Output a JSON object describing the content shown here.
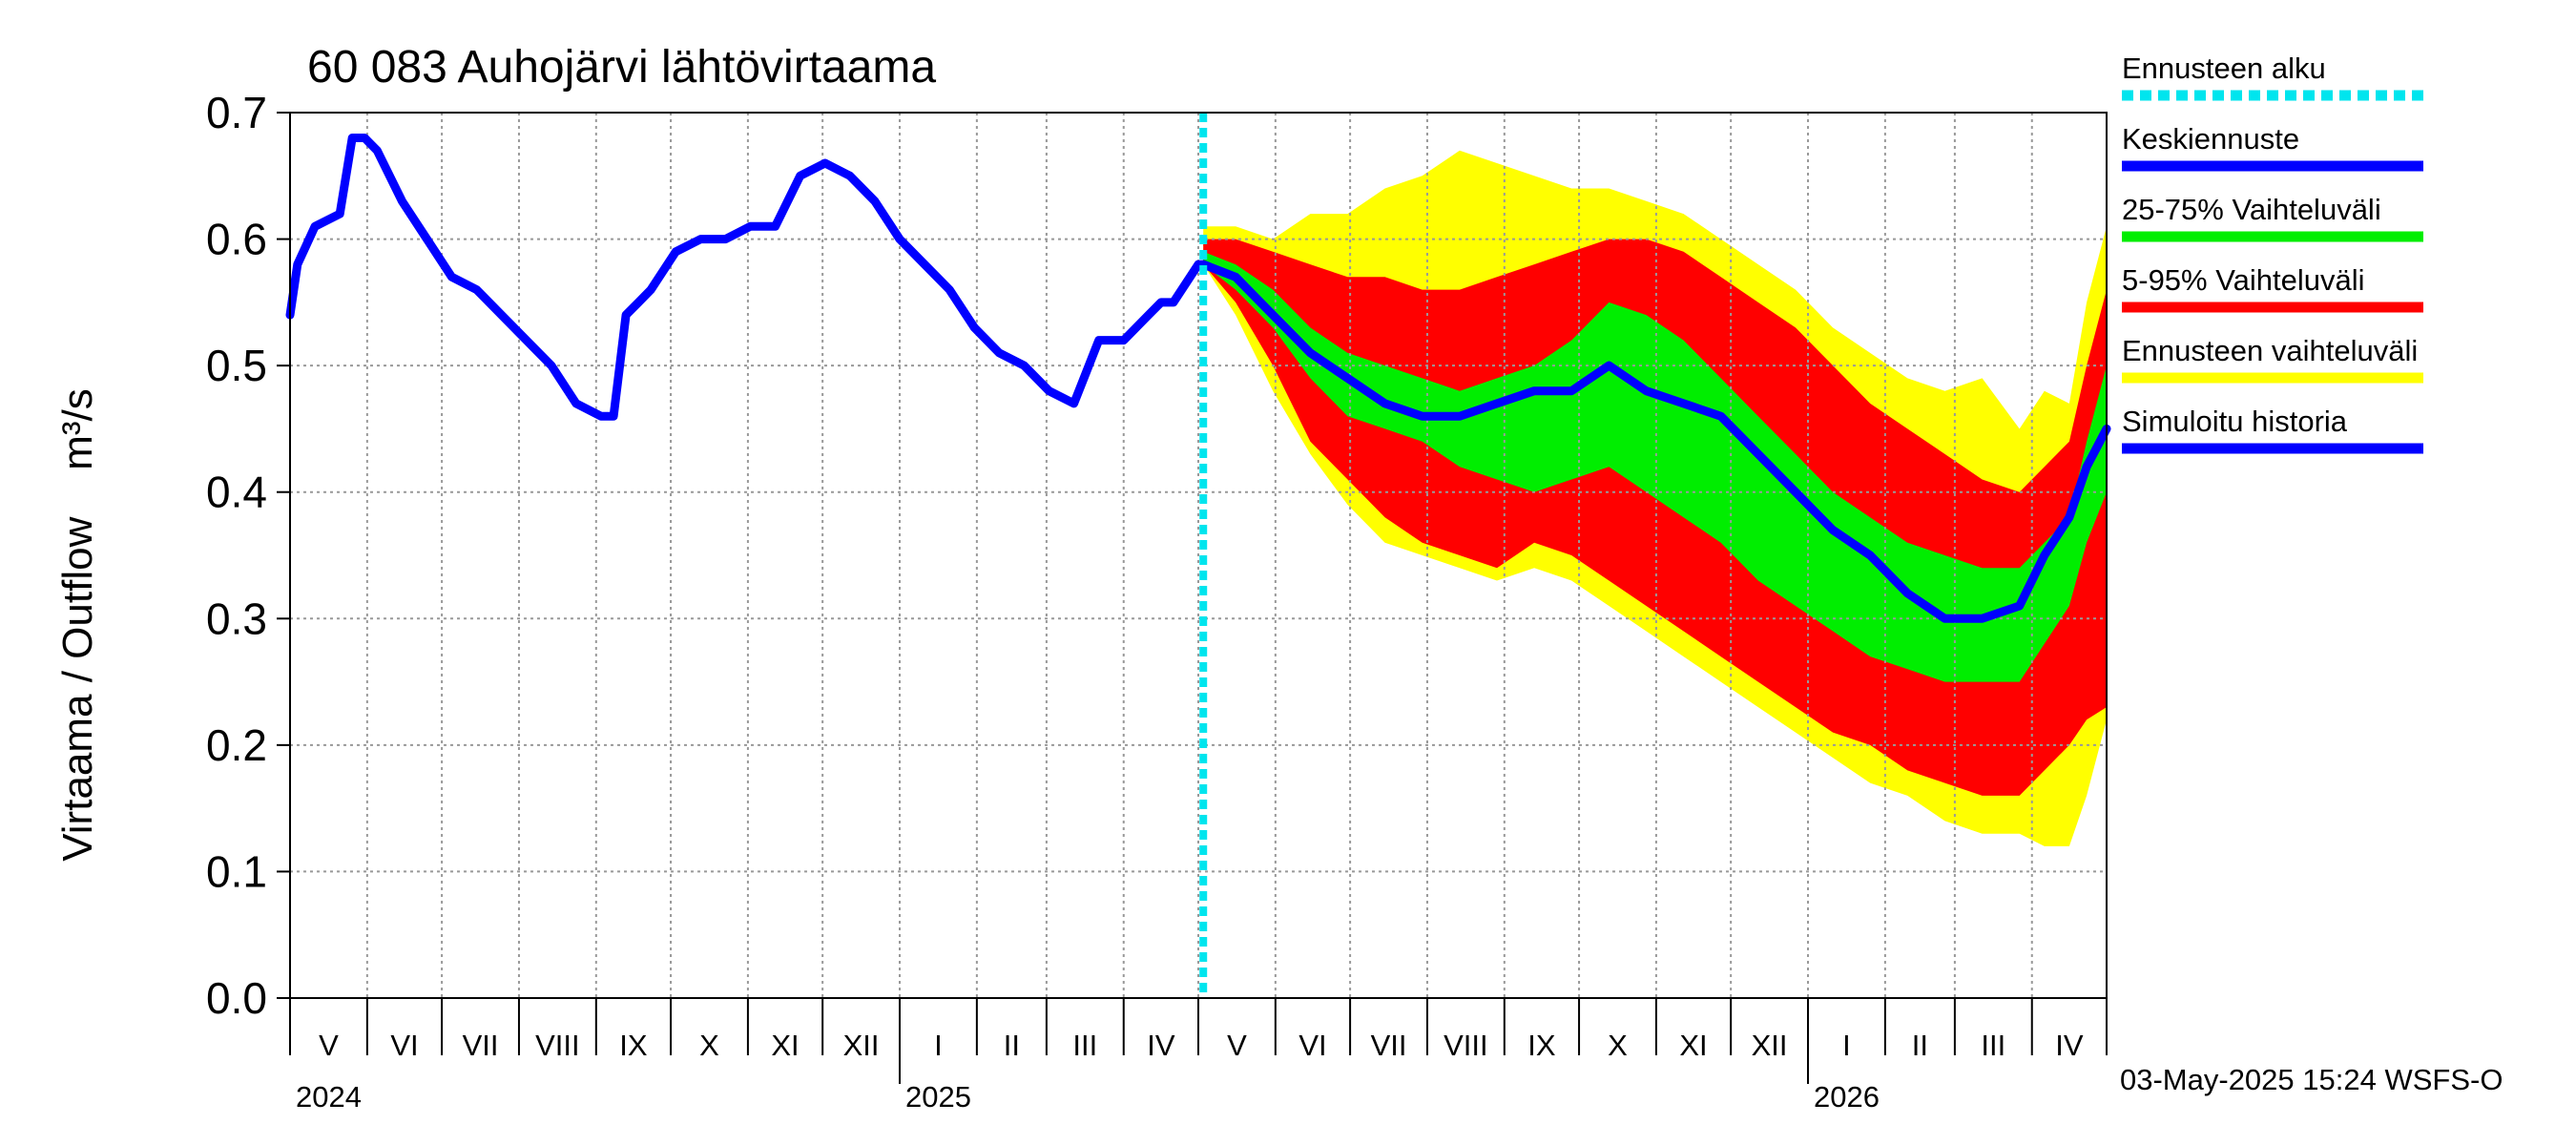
{
  "chart_data": {
    "type": "area",
    "title": "60 083 Auhojärvi lähtövirtaama",
    "ylabel": "Virtaama / Outflow    m³/s",
    "ylim": [
      0,
      0.7
    ],
    "y_ticks": [
      0.0,
      0.1,
      0.2,
      0.3,
      0.4,
      0.5,
      0.6,
      0.7
    ],
    "y_tick_labels": [
      "0.0",
      "0.1",
      "0.2",
      "0.3",
      "0.4",
      "0.5",
      "0.6",
      "0.7"
    ],
    "x_start": "2024-05-01",
    "x_end": "2026-05-01",
    "forecast_start": "2025-05-03",
    "month_labels": [
      "V",
      "VI",
      "VII",
      "VIII",
      "IX",
      "X",
      "XI",
      "XII",
      "I",
      "II",
      "III",
      "IV",
      "V",
      "VI",
      "VII",
      "VIII",
      "IX",
      "X",
      "XI",
      "XII",
      "I",
      "II",
      "III",
      "IV"
    ],
    "year_labels": [
      "2024",
      "2025",
      "2026"
    ],
    "footer": "03-May-2025 15:24 WSFS-O",
    "legend": [
      {
        "label": "Ennusteen alku",
        "color": "#00e5ee",
        "style": "dashed"
      },
      {
        "label": "Keskiennuste",
        "color": "#0000ff",
        "style": "solid"
      },
      {
        "label": "25-75% Vaihteluväli",
        "color": "#00ee00",
        "style": "solid"
      },
      {
        "label": "5-95% Vaihteluväli",
        "color": "#ff0000",
        "style": "solid"
      },
      {
        "label": "Ennusteen vaihteluväli",
        "color": "#ffff00",
        "style": "solid"
      },
      {
        "label": "Simuloitu historia",
        "color": "#0000ff",
        "style": "solid"
      }
    ],
    "colors": {
      "history": "#0000ff",
      "median": "#0000ff",
      "band_25_75": "#00ee00",
      "band_5_95": "#ff0000",
      "band_full": "#ffff00",
      "forecast_start": "#00e5ee",
      "grid": "#999999"
    },
    "history": {
      "days": [
        0,
        3,
        10,
        20,
        25,
        30,
        35,
        45,
        55,
        65,
        75,
        85,
        95,
        105,
        115,
        125,
        130,
        135,
        140,
        145,
        155,
        165,
        175,
        185,
        195,
        205,
        215,
        225,
        235,
        245,
        255,
        265,
        275,
        285,
        295,
        305,
        315,
        325,
        335,
        345,
        350,
        355,
        365,
        367
      ],
      "values": [
        0.54,
        0.58,
        0.61,
        0.62,
        0.68,
        0.68,
        0.67,
        0.63,
        0.6,
        0.57,
        0.56,
        0.54,
        0.52,
        0.5,
        0.47,
        0.46,
        0.46,
        0.54,
        0.55,
        0.56,
        0.59,
        0.6,
        0.6,
        0.61,
        0.61,
        0.65,
        0.66,
        0.65,
        0.63,
        0.6,
        0.58,
        0.56,
        0.53,
        0.51,
        0.5,
        0.48,
        0.47,
        0.52,
        0.52,
        0.54,
        0.55,
        0.55,
        0.58,
        0.58
      ]
    },
    "forecast": {
      "days": [
        367,
        380,
        395,
        410,
        425,
        440,
        455,
        470,
        485,
        500,
        515,
        530,
        545,
        560,
        575,
        590,
        605,
        620,
        635,
        650,
        665,
        680,
        695,
        705,
        715,
        722,
        730
      ],
      "max": [
        0.61,
        0.61,
        0.6,
        0.62,
        0.62,
        0.64,
        0.65,
        0.67,
        0.66,
        0.65,
        0.64,
        0.64,
        0.63,
        0.62,
        0.6,
        0.58,
        0.56,
        0.53,
        0.51,
        0.49,
        0.48,
        0.49,
        0.45,
        0.48,
        0.47,
        0.55,
        0.61
      ],
      "p95": [
        0.6,
        0.6,
        0.59,
        0.58,
        0.57,
        0.57,
        0.56,
        0.56,
        0.57,
        0.58,
        0.59,
        0.6,
        0.6,
        0.59,
        0.57,
        0.55,
        0.53,
        0.5,
        0.47,
        0.45,
        0.43,
        0.41,
        0.4,
        0.42,
        0.44,
        0.5,
        0.56
      ],
      "p75": [
        0.59,
        0.58,
        0.56,
        0.53,
        0.51,
        0.5,
        0.49,
        0.48,
        0.49,
        0.5,
        0.52,
        0.55,
        0.54,
        0.52,
        0.49,
        0.46,
        0.43,
        0.4,
        0.38,
        0.36,
        0.35,
        0.34,
        0.34,
        0.36,
        0.38,
        0.44,
        0.5
      ],
      "median": [
        0.58,
        0.57,
        0.54,
        0.51,
        0.49,
        0.47,
        0.46,
        0.46,
        0.47,
        0.48,
        0.48,
        0.5,
        0.48,
        0.47,
        0.46,
        0.43,
        0.4,
        0.37,
        0.35,
        0.32,
        0.3,
        0.3,
        0.31,
        0.35,
        0.38,
        0.42,
        0.45
      ],
      "p25": [
        0.58,
        0.56,
        0.53,
        0.49,
        0.46,
        0.45,
        0.44,
        0.42,
        0.41,
        0.4,
        0.41,
        0.42,
        0.4,
        0.38,
        0.36,
        0.33,
        0.31,
        0.29,
        0.27,
        0.26,
        0.25,
        0.25,
        0.25,
        0.28,
        0.31,
        0.36,
        0.4
      ],
      "p5": [
        0.58,
        0.55,
        0.5,
        0.44,
        0.41,
        0.38,
        0.36,
        0.35,
        0.34,
        0.36,
        0.35,
        0.33,
        0.31,
        0.29,
        0.27,
        0.25,
        0.23,
        0.21,
        0.2,
        0.18,
        0.17,
        0.16,
        0.16,
        0.18,
        0.2,
        0.22,
        0.23
      ],
      "min": [
        0.58,
        0.54,
        0.48,
        0.43,
        0.39,
        0.36,
        0.35,
        0.34,
        0.33,
        0.34,
        0.33,
        0.31,
        0.29,
        0.27,
        0.25,
        0.23,
        0.21,
        0.19,
        0.17,
        0.16,
        0.14,
        0.13,
        0.13,
        0.12,
        0.12,
        0.16,
        0.22
      ]
    }
  }
}
